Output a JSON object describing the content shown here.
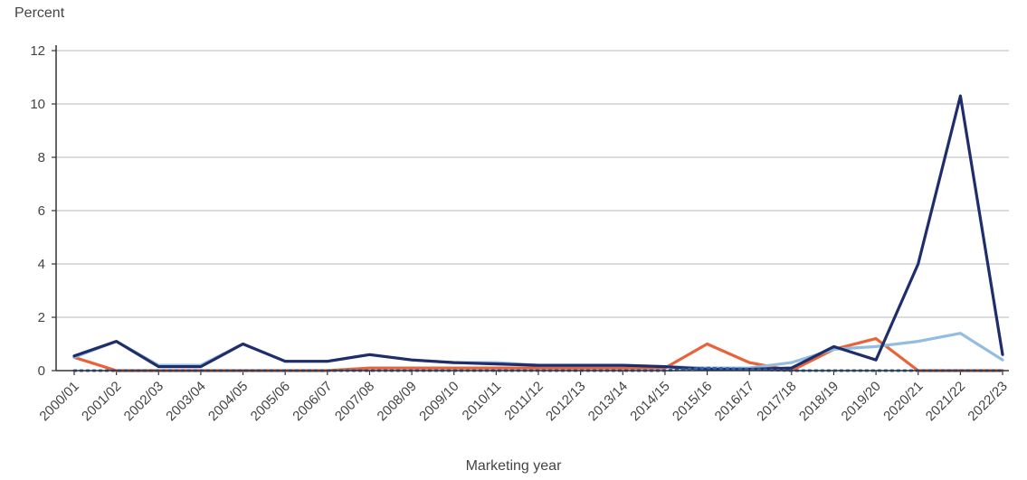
{
  "chart_data": {
    "type": "line",
    "title": "",
    "ylabel": "Percent",
    "xlabel": "Marketing year",
    "ylim": [
      0,
      12
    ],
    "yticks": [
      0,
      2,
      4,
      6,
      8,
      10,
      12
    ],
    "grid": "horizontal",
    "categories": [
      "2000/01",
      "2001/02",
      "2002/03",
      "2003/04",
      "2004/05",
      "2005/06",
      "2006/07",
      "2007/08",
      "2008/09",
      "2009/10",
      "2010/11",
      "2011/12",
      "2012/13",
      "2013/14",
      "2014/15",
      "2015/16",
      "2016/17",
      "2017/18",
      "2018/19",
      "2019/20",
      "2020/21",
      "2021/22",
      "2022/23"
    ],
    "series": [
      {
        "color": "#e8633a",
        "style": "solid",
        "values": [
          0.5,
          0.0,
          0.0,
          0.0,
          0.0,
          0.0,
          0.0,
          0.1,
          0.1,
          0.1,
          0.1,
          0.1,
          0.1,
          0.1,
          0.1,
          1.0,
          0.3,
          0.0,
          0.8,
          1.2,
          0.0,
          0.0,
          0.0
        ]
      },
      {
        "color": "#93bde0",
        "style": "solid",
        "values": [
          0.5,
          1.1,
          0.2,
          0.2,
          1.0,
          0.35,
          0.35,
          0.6,
          0.4,
          0.3,
          0.3,
          0.2,
          0.2,
          0.2,
          0.15,
          0.1,
          0.1,
          0.3,
          0.8,
          0.9,
          1.1,
          1.4,
          0.4
        ]
      },
      {
        "color": "#1f2d6b",
        "style": "solid",
        "values": [
          0.55,
          1.1,
          0.15,
          0.15,
          1.0,
          0.35,
          0.35,
          0.6,
          0.4,
          0.3,
          0.25,
          0.2,
          0.2,
          0.2,
          0.15,
          0.05,
          0.05,
          0.1,
          0.9,
          0.4,
          4.0,
          10.3,
          0.6
        ]
      },
      {
        "color": "#2f62b8",
        "style": "dotted",
        "values": [
          0.0,
          0.0,
          0.0,
          0.0,
          0.0,
          0.0,
          0.0,
          0.0,
          0.0,
          0.0,
          0.0,
          0.0,
          0.0,
          0.0,
          0.0,
          0.1,
          0.05,
          0.0,
          0.0,
          0.0,
          0.0,
          0.0,
          0.0
        ]
      }
    ]
  }
}
